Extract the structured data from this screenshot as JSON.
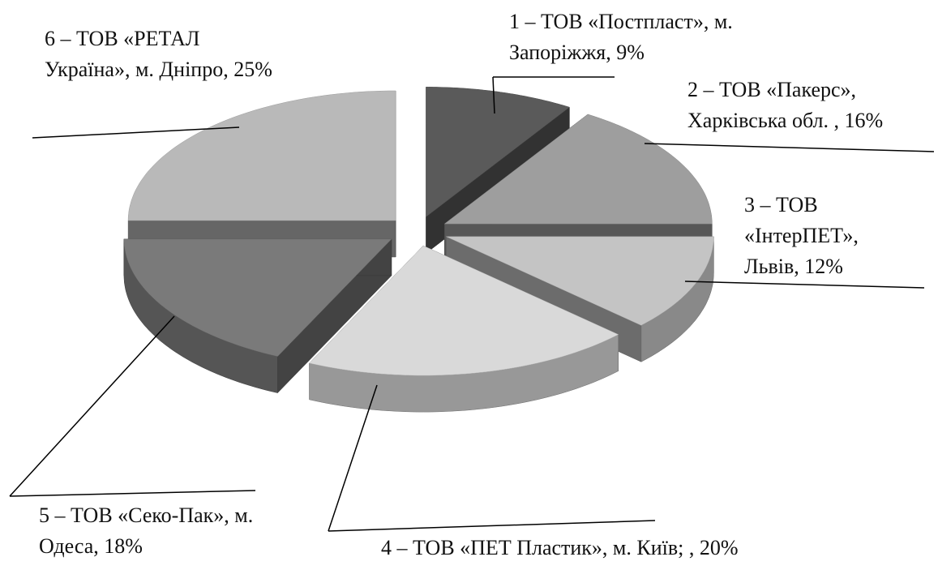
{
  "chart_data": {
    "type": "pie",
    "categories": [
      "1 – ТОВ «Постпласт», м. Запоріжжя, 9%",
      "2 – ТОВ «Пакерс», Харківська обл. , 16%",
      "3 – ТОВ «ІнтерПЕТ», Львів, 12%",
      "4 – ТОВ «ПЕТ Пластик», м. Київ; , 20%",
      "5 – ТОВ «Секо-Пак», м. Одеса, 18%",
      "6 – ТОВ «РЕТАЛ Україна», м. Дніпро, 25%"
    ],
    "values": [
      9,
      16,
      12,
      20,
      18,
      25
    ],
    "colors": [
      "#5a5a5a",
      "#9e9e9e",
      "#c4c4c4",
      "#d9d9d9",
      "#7a7a7a",
      "#b9b9b9"
    ]
  }
}
